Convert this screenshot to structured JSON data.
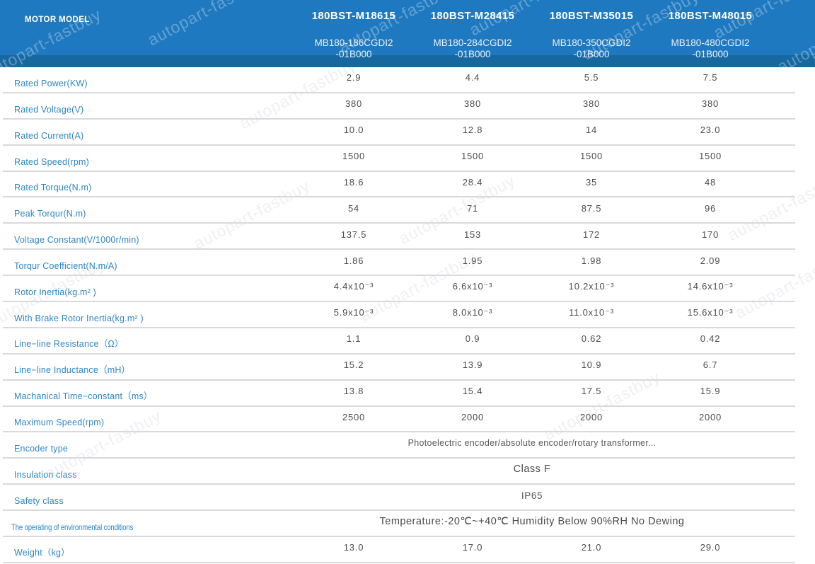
{
  "watermark": {
    "text": "autopart-fastbuy"
  },
  "colors": {
    "header_blue": "#1f79c0",
    "header_blue_dark": "#17689f",
    "label_blue": "#2e86c8",
    "value_gray": "#4d4d4d"
  },
  "header": {
    "row_label": "MOTOR MODEL",
    "columns": [
      {
        "model": "180BST-M18615",
        "code_line1": "MB180-186CGDI2",
        "code_line2": "-01B000"
      },
      {
        "model": "180BST-M28415",
        "code_line1": "MB180-284CGDI2",
        "code_line2": "-01B000"
      },
      {
        "model": "180BST-M35015",
        "code_line1": "MB180-350CGDI2",
        "code_line2": "-01B000"
      },
      {
        "model": "180BST-M48015",
        "code_line1": "MB180-480CGDI2",
        "code_line2": "-01B000"
      }
    ]
  },
  "table": {
    "rows": [
      {
        "label": "Rated Power(KW)",
        "values": [
          "2.9",
          "4.4",
          "5.5",
          "7.5"
        ]
      },
      {
        "label": "Rated Voltage(V)",
        "values": [
          "380",
          "380",
          "380",
          "380"
        ]
      },
      {
        "label": "Rated Current(A)",
        "values": [
          "10.0",
          "12.8",
          "14",
          "23.0"
        ]
      },
      {
        "label": "Rated Speed(rpm)",
        "values": [
          "1500",
          "1500",
          "1500",
          "1500"
        ]
      },
      {
        "label": "Rated Torque(N.m)",
        "values": [
          "18.6",
          "28.4",
          "35",
          "48"
        ]
      },
      {
        "label": "Peak Torqur(N.m)",
        "values": [
          "54",
          "71",
          "87.5",
          "96"
        ]
      },
      {
        "label": "Voltage Constant(V/1000r/min)",
        "values": [
          "137.5",
          "153",
          "172",
          "170"
        ]
      },
      {
        "label": "Torqur Coefficient(N.m/A)",
        "values": [
          "1.86",
          "1.95",
          "1.98",
          "2.09"
        ]
      },
      {
        "label": "Rotor Inertia(kg.m² )",
        "values": [
          "4.4x10⁻³",
          "6.6x10⁻³",
          "10.2x10⁻³",
          "14.6x10⁻³"
        ]
      },
      {
        "label": "With Brake Rotor Inertia(kg.m² )",
        "values": [
          "5.9x10⁻³",
          "8.0x10⁻³",
          "11.0x10⁻³",
          "15.6x10⁻³"
        ]
      },
      {
        "label": "Line−line Resistance（Ω）",
        "values": [
          "1.1",
          "0.9",
          "0.62",
          "0.42"
        ]
      },
      {
        "label": "Line−line Inductance（mH）",
        "values": [
          "15.2",
          "13.9",
          "10.9",
          "6.7"
        ]
      },
      {
        "label": "Machanical Time−constant（ms）",
        "values": [
          "13.8",
          "15.4",
          "17.5",
          "15.9"
        ]
      },
      {
        "label": "Maximum Speed(rpm)",
        "values": [
          "2500",
          "2000",
          "2000",
          "2000"
        ]
      },
      {
        "label": "Encoder type",
        "span_value": "Photoelectric encoder/absolute encoder/rotary transformer..."
      },
      {
        "label": "Insulation class",
        "span_value": "Class F"
      },
      {
        "label": "Safety class",
        "span_value": "IP65"
      },
      {
        "label": "The operating of environmental conditions",
        "span_value": "Temperature:-20℃~+40℃  Humidity Below 90%RH No Dewing"
      },
      {
        "label": "Weight（kg）",
        "values": [
          "13.0",
          "17.0",
          "21.0",
          "29.0"
        ]
      }
    ]
  }
}
